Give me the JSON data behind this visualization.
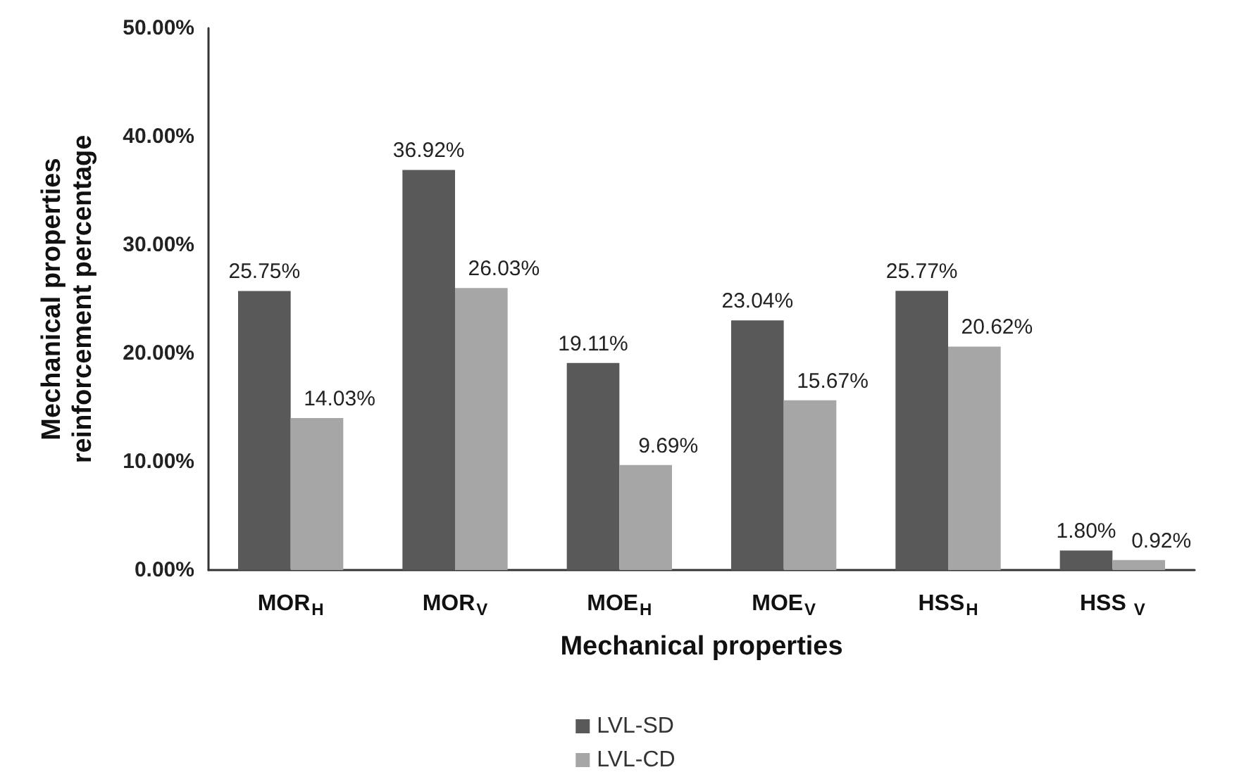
{
  "chart_data": {
    "type": "bar",
    "xlabel": "Mechanical properties",
    "ylabel": "Mechanical properties\nreinforcement percentage",
    "categories": [
      "MOR$_{H}$",
      "MOR$_{V}$",
      "MOE$_{H}$",
      "MOE$_{V}$",
      "HSS$_{H}$",
      "HSS $_{V}$"
    ],
    "series": [
      {
        "name": "LVL-SD",
        "color": "#595959",
        "values": [
          25.75,
          36.92,
          19.11,
          23.04,
          25.77,
          1.8
        ],
        "value_labels": [
          "25.75%",
          "36.92%",
          "19.11%",
          "23.04%",
          "25.77%",
          "1.80%"
        ]
      },
      {
        "name": "LVL-CD",
        "color": "#a6a6a6",
        "values": [
          14.03,
          26.03,
          9.69,
          15.67,
          20.62,
          0.92
        ],
        "value_labels": [
          "14.03%",
          "26.03%",
          "9.69%",
          "15.67%",
          "20.62%",
          "0.92%"
        ]
      }
    ],
    "ylim": [
      0,
      50
    ],
    "yticks": [
      {
        "value": 0,
        "label": "0.00%"
      },
      {
        "value": 10,
        "label": "10.00%"
      },
      {
        "value": 20,
        "label": "20.00%"
      },
      {
        "value": 30,
        "label": "30.00%"
      },
      {
        "value": 40,
        "label": "40.00%"
      },
      {
        "value": 50,
        "label": "50.00%"
      }
    ],
    "grid": false,
    "legend": "bottom"
  }
}
